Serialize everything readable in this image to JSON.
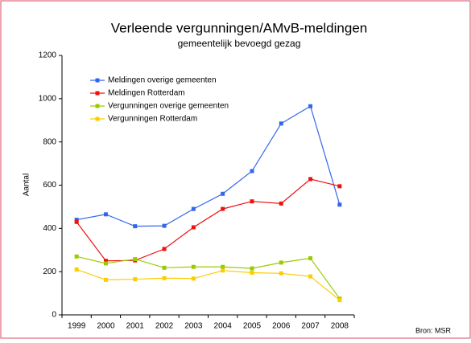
{
  "chart_data": {
    "type": "line",
    "title": "Verleende vergunningen/AMvB-meldingen",
    "subtitle": "gemeentelijk bevoegd gezag",
    "y_label": "Aantal",
    "source": "Bron: MSR",
    "categories": [
      "1999",
      "2000",
      "2001",
      "2002",
      "2003",
      "2004",
      "2005",
      "2006",
      "2007",
      "2008"
    ],
    "series": [
      {
        "name": "Meldingen overige gemeenten",
        "color": "#3366ee",
        "values": [
          440,
          465,
          410,
          412,
          490,
          560,
          665,
          885,
          965,
          510
        ]
      },
      {
        "name": "Meldingen Rotterdam",
        "color": "#ee1111",
        "values": [
          430,
          250,
          252,
          305,
          405,
          490,
          525,
          515,
          628,
          595
        ]
      },
      {
        "name": "Vergunningen overige gemeenten",
        "color": "#99cc00",
        "values": [
          270,
          238,
          258,
          218,
          222,
          222,
          215,
          242,
          262,
          75
        ]
      },
      {
        "name": "Vergunningen Rotterdam",
        "color": "#ffcc00",
        "values": [
          210,
          162,
          165,
          170,
          168,
          205,
          195,
          192,
          178,
          68
        ]
      }
    ],
    "ylim": [
      0,
      1200
    ],
    "yticks": [
      0,
      200,
      400,
      600,
      800,
      1000,
      1200
    ],
    "legend": "upper left",
    "grid": false
  }
}
